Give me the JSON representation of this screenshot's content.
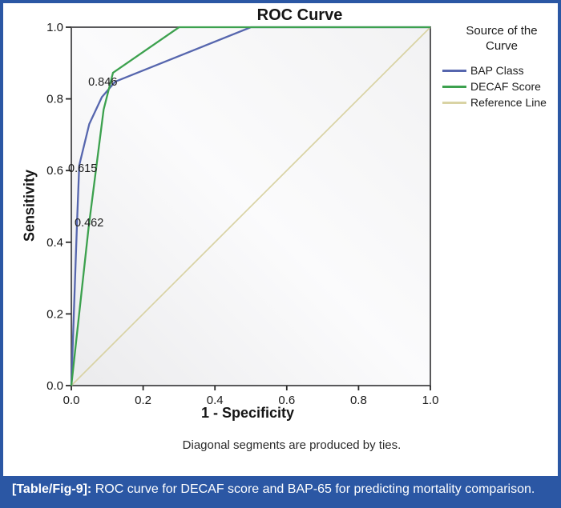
{
  "figure": {
    "footnote": "Diagonal segments are produced by ties.",
    "caption": {
      "tag": "[Table/Fig-9]:",
      "text": " ROC curve for DECAF score and BAP-65 for predicting mortality comparison."
    },
    "border_color": "#2b57a4"
  },
  "chart_data": {
    "type": "line",
    "title": "ROC Curve",
    "xlabel": "1 - Specificity",
    "ylabel": "Sensitivity",
    "xlim": [
      0,
      1
    ],
    "ylim": [
      0,
      1
    ],
    "grid": false,
    "legend_title": "Source of the Curve",
    "legend_position": "right",
    "ticks": {
      "x": [
        "0.0",
        "0.2",
        "0.4",
        "0.6",
        "0.8",
        "1.0"
      ],
      "y": [
        "0.0",
        "0.2",
        "0.4",
        "0.6",
        "0.8",
        "1.0"
      ]
    },
    "series": [
      {
        "name": "BAP Class",
        "color": "#5666ae",
        "points": [
          [
            0,
            0
          ],
          [
            0.016,
            0.46
          ],
          [
            0.022,
            0.615
          ],
          [
            0.05,
            0.73
          ],
          [
            0.085,
            0.805
          ],
          [
            0.122,
            0.848
          ],
          [
            0.5,
            1
          ],
          [
            1,
            1
          ]
        ]
      },
      {
        "name": "DECAF Score",
        "color": "#3ca14e",
        "points": [
          [
            0,
            0
          ],
          [
            0.048,
            0.44
          ],
          [
            0.09,
            0.77
          ],
          [
            0.116,
            0.873
          ],
          [
            0.3,
            1
          ],
          [
            1,
            1
          ]
        ]
      },
      {
        "name": "Reference Line",
        "color": "#d9d3a4",
        "points": [
          [
            0,
            0
          ],
          [
            1,
            1
          ]
        ]
      }
    ],
    "annotations": [
      {
        "text": "0.846",
        "x": 0.047,
        "y": 0.837
      },
      {
        "text": "0.615",
        "x": -0.009,
        "y": 0.596
      },
      {
        "text": "0.462",
        "x": 0.009,
        "y": 0.444
      }
    ],
    "plot_bg": [
      "#ebebed",
      "#fbfbfc",
      "#f2f2f3"
    ],
    "frame_color": "#59595b"
  }
}
